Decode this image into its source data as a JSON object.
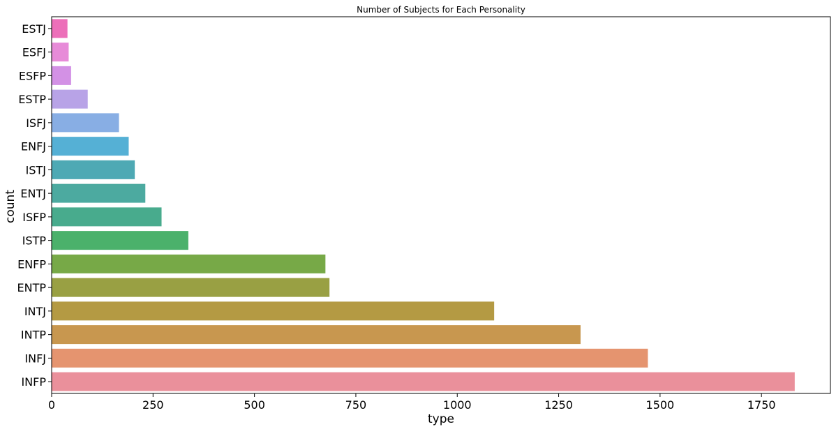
{
  "chart_data": {
    "type": "bar",
    "orientation": "horizontal",
    "title": "Number of Subjects for Each Personality",
    "xlabel": "type",
    "ylabel": "count",
    "xlim": [
      0,
      1920
    ],
    "xticks": [
      0,
      250,
      500,
      750,
      1000,
      1250,
      1500,
      1750
    ],
    "grid": false,
    "categories": [
      "ESTJ",
      "ESFJ",
      "ESFP",
      "ESTP",
      "ISFJ",
      "ENFJ",
      "ISTJ",
      "ENTJ",
      "ISFP",
      "ISTP",
      "ENFP",
      "ENTP",
      "INTJ",
      "INTP",
      "INFJ",
      "INFP"
    ],
    "values": [
      39,
      42,
      48,
      89,
      166,
      190,
      205,
      231,
      271,
      337,
      675,
      685,
      1091,
      1304,
      1470,
      1832
    ],
    "colors": [
      "#ec6fb9",
      "#e78bd8",
      "#d391e5",
      "#b8a3e7",
      "#88aee4",
      "#55b0d5",
      "#4ea9b4",
      "#4caaa0",
      "#48ab8d",
      "#4bb16b",
      "#77a947",
      "#99a043",
      "#b49a43",
      "#c8974f",
      "#e5946f",
      "#ea909b"
    ]
  }
}
